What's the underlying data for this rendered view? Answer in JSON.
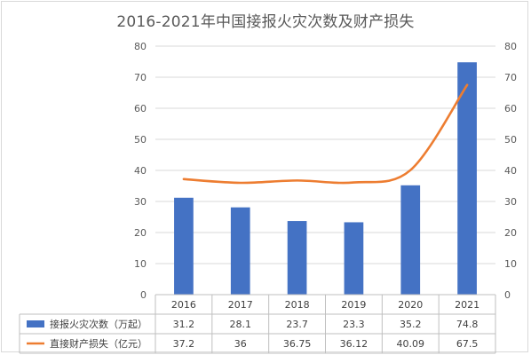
{
  "chart_data": {
    "type": "bar",
    "title": "2016-2021年中国接报火灾次数及财产损失",
    "categories": [
      "2016",
      "2017",
      "2018",
      "2019",
      "2020",
      "2021"
    ],
    "series": [
      {
        "name": "接报火灾次数（万起）",
        "type": "bar",
        "values": [
          31.2,
          28.1,
          23.7,
          23.3,
          35.2,
          74.8
        ],
        "color": "#4472c4",
        "axis": "left"
      },
      {
        "name": "直接财产损失（亿元）",
        "type": "line",
        "values": [
          37.2,
          36,
          36.75,
          36.12,
          40.09,
          67.5
        ],
        "color": "#ed7d31",
        "axis": "right"
      }
    ],
    "y_left": {
      "range": [
        0,
        80
      ],
      "ticks": [
        "0",
        "10",
        "20",
        "30",
        "40",
        "50",
        "60",
        "70",
        "80"
      ]
    },
    "y_right": {
      "range": [
        0,
        80
      ],
      "ticks": [
        "0",
        "10",
        "20",
        "30",
        "40",
        "50",
        "60",
        "70",
        "80"
      ]
    },
    "data_table": {
      "rows": [
        [
          "31.2",
          "28.1",
          "23.7",
          "23.3",
          "35.2",
          "74.8"
        ],
        [
          "37.2",
          "36",
          "36.75",
          "36.12",
          "40.09",
          "67.5"
        ]
      ]
    },
    "grid": true,
    "legend": "data-table"
  }
}
